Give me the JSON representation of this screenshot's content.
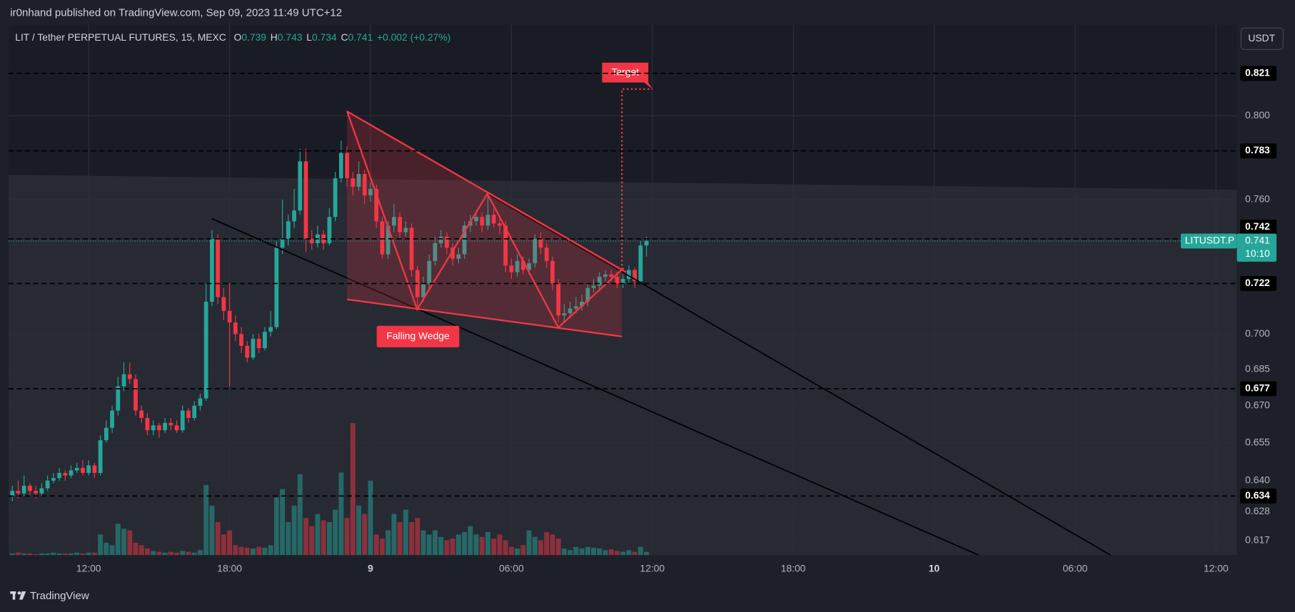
{
  "header": {
    "publisher": "ir0nhand published on TradingView.com, Sep 09, 2023 11:49 UTC+12"
  },
  "branding": "TradingView",
  "currency_button": "USDT",
  "chart_data": {
    "type": "candlestick",
    "title": "LIT / Tether PERPETUAL FUTURES, 15, MEXC",
    "legend": [
      {
        "label": "O",
        "value": 0.739
      },
      {
        "label": "H",
        "value": 0.743
      },
      {
        "label": "L",
        "value": 0.734
      },
      {
        "label": "C",
        "value": 0.741
      }
    ],
    "change": "+0.002 (+0.27%)",
    "x": [
      8.75,
      9,
      9.25,
      9.5,
      9.75,
      10,
      10.25,
      10.5,
      10.75,
      11,
      11.25,
      11.5,
      11.75,
      12,
      12.25,
      12.5,
      12.75,
      13,
      13.25,
      13.5,
      13.75,
      14,
      14.25,
      14.5,
      14.75,
      15,
      15.25,
      15.5,
      15.75,
      16,
      16.25,
      16.5,
      16.75,
      17,
      17.25,
      17.5,
      17.75,
      18,
      18.25,
      18.5,
      18.75,
      19,
      19.25,
      19.5,
      19.75,
      20,
      20.25,
      20.5,
      20.75,
      21,
      21.25,
      21.5,
      21.75,
      22,
      22.25,
      22.5,
      22.75,
      23,
      23.25,
      23.5,
      23.75,
      24,
      24.25,
      24.5,
      24.75,
      25,
      25.25,
      25.5,
      25.75,
      26,
      26.25,
      26.5,
      26.75,
      27,
      27.25,
      27.5,
      27.75,
      28,
      28.25,
      28.5,
      28.75,
      29,
      29.25,
      29.5,
      29.75,
      30,
      30.25,
      30.5,
      30.75,
      31,
      31.25,
      31.5,
      31.75,
      32,
      32.25,
      32.5,
      32.75,
      33,
      33.25,
      33.5,
      33.75,
      34,
      34.25,
      34.5,
      34.75,
      35,
      35.25,
      35.5,
      35.75
    ],
    "open": [
      0.634,
      0.636,
      0.635,
      0.638,
      0.636,
      0.635,
      0.637,
      0.64,
      0.641,
      0.643,
      0.642,
      0.644,
      0.645,
      0.643,
      0.646,
      0.643,
      0.656,
      0.661,
      0.668,
      0.678,
      0.683,
      0.681,
      0.668,
      0.665,
      0.66,
      0.662,
      0.66,
      0.663,
      0.662,
      0.66,
      0.668,
      0.665,
      0.67,
      0.673,
      0.714,
      0.742,
      0.716,
      0.71,
      0.705,
      0.7,
      0.695,
      0.69,
      0.698,
      0.694,
      0.701,
      0.703,
      0.738,
      0.742,
      0.75,
      0.755,
      0.778,
      0.742,
      0.74,
      0.744,
      0.74,
      0.752,
      0.77,
      0.782,
      0.77,
      0.766,
      0.772,
      0.762,
      0.765,
      0.75,
      0.735,
      0.748,
      0.752,
      0.745,
      0.747,
      0.728,
      0.716,
      0.722,
      0.732,
      0.74,
      0.743,
      0.738,
      0.733,
      0.735,
      0.748,
      0.75,
      0.752,
      0.748,
      0.753,
      0.749,
      0.748,
      0.73,
      0.727,
      0.732,
      0.728,
      0.731,
      0.742,
      0.738,
      0.732,
      0.722,
      0.708,
      0.709,
      0.711,
      0.712,
      0.714,
      0.72,
      0.721,
      0.725,
      0.726,
      0.725,
      0.722,
      0.724,
      0.728,
      0.723,
      0.739
    ],
    "high": [
      0.638,
      0.64,
      0.642,
      0.639,
      0.638,
      0.639,
      0.642,
      0.643,
      0.645,
      0.644,
      0.646,
      0.647,
      0.648,
      0.648,
      0.647,
      0.658,
      0.664,
      0.67,
      0.682,
      0.688,
      0.688,
      0.683,
      0.67,
      0.667,
      0.664,
      0.663,
      0.665,
      0.665,
      0.664,
      0.67,
      0.669,
      0.672,
      0.675,
      0.722,
      0.746,
      0.744,
      0.72,
      0.722,
      0.708,
      0.703,
      0.697,
      0.7,
      0.7,
      0.703,
      0.71,
      0.741,
      0.76,
      0.753,
      0.765,
      0.784,
      0.784,
      0.746,
      0.748,
      0.746,
      0.756,
      0.773,
      0.788,
      0.785,
      0.773,
      0.778,
      0.774,
      0.768,
      0.767,
      0.752,
      0.75,
      0.758,
      0.754,
      0.75,
      0.749,
      0.73,
      0.725,
      0.735,
      0.743,
      0.746,
      0.745,
      0.74,
      0.738,
      0.75,
      0.753,
      0.755,
      0.754,
      0.762,
      0.756,
      0.752,
      0.75,
      0.733,
      0.735,
      0.734,
      0.733,
      0.744,
      0.745,
      0.74,
      0.734,
      0.724,
      0.713,
      0.714,
      0.716,
      0.717,
      0.722,
      0.724,
      0.727,
      0.728,
      0.728,
      0.727,
      0.726,
      0.73,
      0.729,
      0.741,
      0.743
    ],
    "low": [
      0.632,
      0.633,
      0.634,
      0.634,
      0.633,
      0.634,
      0.636,
      0.639,
      0.64,
      0.64,
      0.641,
      0.643,
      0.642,
      0.642,
      0.641,
      0.642,
      0.655,
      0.659,
      0.666,
      0.676,
      0.679,
      0.666,
      0.663,
      0.658,
      0.658,
      0.657,
      0.659,
      0.66,
      0.659,
      0.659,
      0.663,
      0.664,
      0.668,
      0.672,
      0.712,
      0.713,
      0.706,
      0.678,
      0.697,
      0.692,
      0.688,
      0.689,
      0.692,
      0.693,
      0.699,
      0.702,
      0.735,
      0.739,
      0.747,
      0.753,
      0.736,
      0.737,
      0.738,
      0.737,
      0.739,
      0.75,
      0.768,
      0.766,
      0.762,
      0.764,
      0.758,
      0.759,
      0.747,
      0.733,
      0.733,
      0.745,
      0.742,
      0.743,
      0.725,
      0.712,
      0.714,
      0.72,
      0.73,
      0.738,
      0.735,
      0.73,
      0.731,
      0.733,
      0.745,
      0.748,
      0.745,
      0.746,
      0.747,
      0.744,
      0.727,
      0.724,
      0.725,
      0.726,
      0.726,
      0.729,
      0.735,
      0.729,
      0.719,
      0.705,
      0.705,
      0.707,
      0.709,
      0.71,
      0.712,
      0.718,
      0.719,
      0.723,
      0.723,
      0.72,
      0.72,
      0.722,
      0.72,
      0.722,
      0.734
    ],
    "close": [
      0.636,
      0.635,
      0.638,
      0.636,
      0.635,
      0.637,
      0.64,
      0.641,
      0.643,
      0.642,
      0.644,
      0.645,
      0.643,
      0.646,
      0.643,
      0.656,
      0.661,
      0.668,
      0.678,
      0.683,
      0.681,
      0.668,
      0.665,
      0.66,
      0.662,
      0.66,
      0.663,
      0.662,
      0.66,
      0.668,
      0.665,
      0.67,
      0.673,
      0.714,
      0.742,
      0.716,
      0.71,
      0.705,
      0.7,
      0.695,
      0.69,
      0.698,
      0.694,
      0.701,
      0.703,
      0.738,
      0.742,
      0.75,
      0.755,
      0.778,
      0.742,
      0.74,
      0.744,
      0.74,
      0.752,
      0.77,
      0.782,
      0.77,
      0.766,
      0.772,
      0.762,
      0.765,
      0.75,
      0.735,
      0.748,
      0.752,
      0.745,
      0.747,
      0.728,
      0.716,
      0.722,
      0.732,
      0.74,
      0.743,
      0.738,
      0.733,
      0.735,
      0.748,
      0.75,
      0.752,
      0.748,
      0.753,
      0.749,
      0.748,
      0.73,
      0.727,
      0.732,
      0.728,
      0.731,
      0.742,
      0.738,
      0.732,
      0.722,
      0.708,
      0.709,
      0.711,
      0.712,
      0.714,
      0.72,
      0.721,
      0.725,
      0.726,
      0.725,
      0.722,
      0.724,
      0.728,
      0.723,
      0.739,
      0.741
    ],
    "volume": [
      2,
      3,
      2,
      2,
      1,
      2,
      2,
      3,
      2,
      2,
      2,
      3,
      2,
      3,
      3,
      25,
      15,
      12,
      38,
      32,
      30,
      15,
      12,
      8,
      5,
      4,
      3,
      4,
      3,
      5,
      4,
      3,
      6,
      85,
      60,
      40,
      25,
      30,
      12,
      10,
      9,
      8,
      10,
      9,
      12,
      70,
      80,
      40,
      60,
      98,
      45,
      35,
      50,
      42,
      40,
      55,
      100,
      45,
      160,
      60,
      50,
      90,
      25,
      20,
      30,
      50,
      40,
      55,
      40,
      45,
      30,
      25,
      30,
      22,
      18,
      20,
      25,
      28,
      35,
      25,
      22,
      28,
      20,
      25,
      18,
      10,
      8,
      12,
      30,
      22,
      18,
      28,
      25,
      20,
      8,
      6,
      10,
      8,
      10,
      9,
      8,
      6,
      7,
      5,
      4,
      6,
      4,
      10,
      4
    ],
    "up_color": "#26a69a",
    "down_color": "#f23645",
    "xlim": [
      8.59,
      60.89
    ],
    "xticks": [
      {
        "value": 12,
        "label": "12:00"
      },
      {
        "value": 18,
        "label": "18:00"
      },
      {
        "value": 24,
        "label": "9"
      },
      {
        "value": 30,
        "label": "06:00"
      },
      {
        "value": 36,
        "label": "12:00"
      },
      {
        "value": 42,
        "label": "18:00"
      },
      {
        "value": 48,
        "label": "10"
      },
      {
        "value": 54,
        "label": "06:00"
      },
      {
        "value": 60,
        "label": "12:00"
      }
    ],
    "ylim": [
      0.6115,
      0.8458
    ],
    "log_scale": true,
    "yticks": [
      {
        "value": 0.8,
        "label": "0.800"
      },
      {
        "value": 0.76,
        "label": "0.760"
      },
      {
        "value": 0.7,
        "label": "0.700"
      },
      0.685,
      {
        "value": 0.67,
        "label": "0.670"
      },
      0.655,
      {
        "value": 0.64,
        "label": "0.640"
      },
      0.628,
      0.617
    ],
    "grid": true,
    "levels": [
      0.821,
      0.783,
      0.742,
      0.722,
      0.677,
      0.634
    ],
    "last_price": {
      "symbol": "LITUSDT.P",
      "value": 0.741,
      "countdown": "10:10"
    },
    "annotations": [
      "Target",
      "Falling Wedge"
    ]
  }
}
